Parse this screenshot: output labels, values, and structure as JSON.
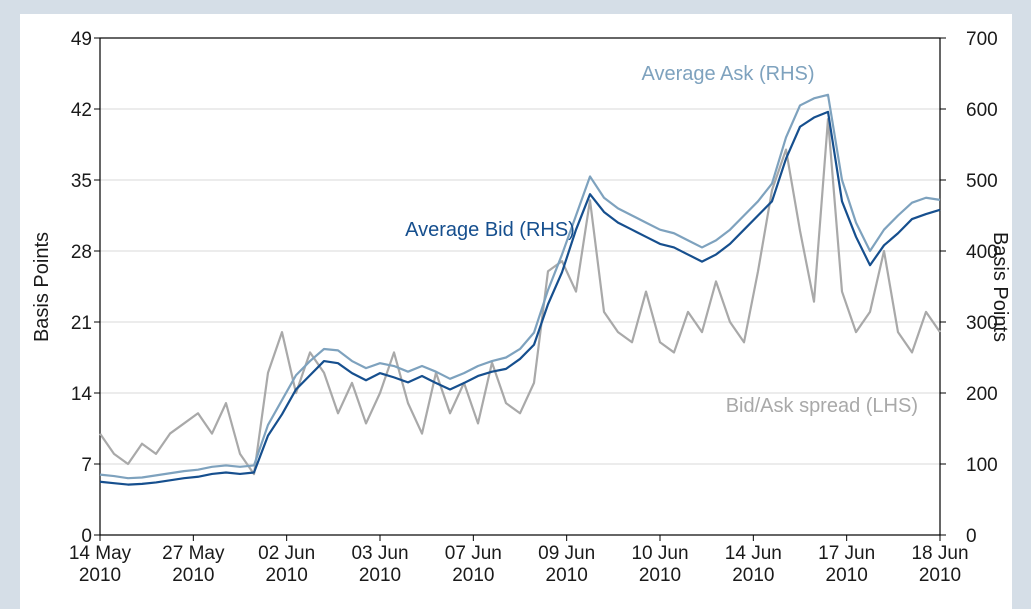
{
  "chart_data": {
    "type": "line",
    "left_axis_label": "Basis Points",
    "right_axis_label": "Basis Points",
    "x": [
      0,
      0.15,
      0.3,
      0.45,
      0.6,
      0.75,
      0.9,
      1.05,
      1.2,
      1.35,
      1.5,
      1.65,
      1.8,
      1.95,
      2.1,
      2.25,
      2.4,
      2.55,
      2.7,
      2.85,
      3.0,
      3.15,
      3.3,
      3.45,
      3.6,
      3.75,
      3.9,
      4.05,
      4.2,
      4.35,
      4.5,
      4.65,
      4.8,
      4.95,
      5.1,
      5.25,
      5.4,
      5.55,
      5.7,
      5.85,
      6.0,
      6.15,
      6.3,
      6.45,
      6.6,
      6.75,
      6.9,
      7.05,
      7.2,
      7.35,
      7.5,
      7.65,
      7.8,
      7.95,
      8.1,
      8.25,
      8.4,
      8.55,
      8.7,
      8.85,
      9.0
    ],
    "xlim": [
      0,
      9
    ],
    "xticks": [
      {
        "value": 0,
        "label": "14 May 2010"
      },
      {
        "value": 1,
        "label": "27 May 2010"
      },
      {
        "value": 2,
        "label": "02 Jun 2010"
      },
      {
        "value": 3,
        "label": "03 Jun 2010"
      },
      {
        "value": 4,
        "label": "07 Jun 2010"
      },
      {
        "value": 5,
        "label": "09 Jun 2010"
      },
      {
        "value": 6,
        "label": "10 Jun 2010"
      },
      {
        "value": 7,
        "label": "14 Jun 2010"
      },
      {
        "value": 8,
        "label": "17 Jun 2010"
      },
      {
        "value": 9,
        "label": "18 Jun 2010"
      }
    ],
    "ylim": [
      0,
      49
    ],
    "yticks": [
      0,
      7,
      14,
      21,
      28,
      35,
      42,
      49
    ],
    "y2lim": [
      0,
      700
    ],
    "y2ticks": [
      0,
      100,
      200,
      300,
      400,
      500,
      600,
      700
    ],
    "grid": true,
    "series": [
      {
        "name": "Bid/Ask spread (LHS)",
        "color": "#a9a9a9",
        "axis": "y",
        "values": [
          10,
          8,
          7,
          9,
          8,
          10,
          11,
          12,
          10,
          13,
          8,
          6,
          16,
          20,
          14,
          18,
          16,
          12,
          15,
          11,
          14,
          18,
          13,
          10,
          16,
          12,
          15,
          11,
          17,
          13,
          12,
          15,
          26,
          27,
          24,
          33,
          22,
          20,
          19,
          24,
          19,
          18,
          22,
          20,
          25,
          21,
          19,
          26,
          34,
          38,
          30,
          23,
          41,
          24,
          20,
          22,
          28,
          20,
          18,
          22,
          20
        ]
      },
      {
        "name": "Average Ask (RHS)",
        "color": "#7ea2be",
        "axis": "y2",
        "values": [
          85,
          83,
          80,
          81,
          84,
          87,
          90,
          92,
          96,
          98,
          96,
          98,
          155,
          190,
          225,
          245,
          262,
          260,
          245,
          235,
          242,
          238,
          230,
          238,
          230,
          220,
          228,
          238,
          245,
          250,
          262,
          285,
          345,
          395,
          450,
          505,
          475,
          460,
          450,
          440,
          430,
          425,
          415,
          405,
          415,
          430,
          450,
          470,
          495,
          560,
          605,
          615,
          620,
          500,
          440,
          400,
          430,
          450,
          468,
          475,
          472
        ]
      },
      {
        "name": "Average Bid (RHS)",
        "color": "#164f8e",
        "axis": "y2",
        "values": [
          75,
          73,
          71,
          72,
          74,
          77,
          80,
          82,
          86,
          88,
          86,
          88,
          140,
          170,
          205,
          225,
          245,
          242,
          228,
          218,
          228,
          222,
          215,
          224,
          214,
          205,
          214,
          224,
          230,
          234,
          248,
          268,
          325,
          370,
          430,
          480,
          455,
          440,
          430,
          420,
          410,
          405,
          395,
          385,
          395,
          410,
          430,
          450,
          470,
          530,
          575,
          588,
          596,
          470,
          420,
          380,
          408,
          425,
          445,
          452,
          458
        ]
      }
    ]
  }
}
